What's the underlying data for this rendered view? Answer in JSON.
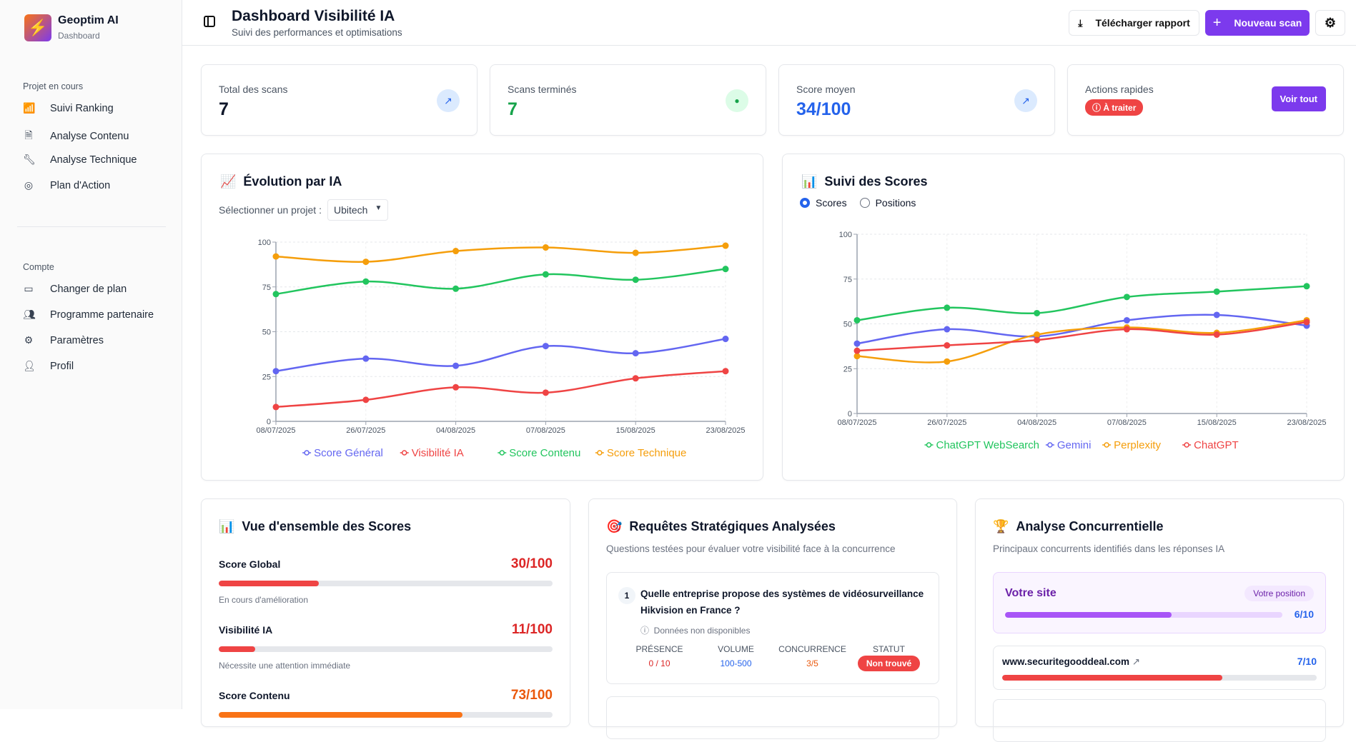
{
  "app": {
    "name": "Geoptim AI",
    "subtitle": "Dashboard",
    "logo_text": "E⚡"
  },
  "sidebar": {
    "section1": "Projet en cours",
    "items1": [
      {
        "label": "Suivi Ranking",
        "icon": "bar-chart-icon"
      },
      {
        "label": "Analyse Contenu",
        "icon": "file-text-icon"
      },
      {
        "label": "Analyse Technique",
        "icon": "wrench-icon"
      },
      {
        "label": "Plan d'Action",
        "icon": "target-icon"
      }
    ],
    "section2": "Compte",
    "items2": [
      {
        "label": "Changer de plan",
        "icon": "credit-card-icon"
      },
      {
        "label": "Programme partenaire",
        "icon": "users-icon"
      },
      {
        "label": "Paramètres",
        "icon": "gear-icon"
      },
      {
        "label": "Profil",
        "icon": "user-icon"
      }
    ]
  },
  "header": {
    "title": "Dashboard Visibilité IA",
    "subtitle": "Suivi des performances et optimisations",
    "download": "Télécharger rapport",
    "new_scan": "Nouveau scan"
  },
  "stats": [
    {
      "label": "Total des scans",
      "value": "7"
    },
    {
      "label": "Scans terminés",
      "value": "7"
    },
    {
      "label": "Score moyen",
      "value": "34/100"
    },
    {
      "label": "Actions rapides",
      "badge": "À traiter",
      "button": "Voir tout"
    }
  ],
  "evolution": {
    "title": "Évolution par IA",
    "emoji": "📈",
    "select_label": "Sélectionner un projet :",
    "select_value": "Ubitech"
  },
  "suivi": {
    "title": "Suivi des Scores",
    "emoji": "📊",
    "radio_scores": "Scores",
    "radio_positions": "Positions",
    "selected": "Scores"
  },
  "chart_data": [
    {
      "type": "line",
      "title": "Évolution par IA",
      "x": [
        "08/07/2025",
        "26/07/2025",
        "04/08/2025",
        "07/08/2025",
        "15/08/2025",
        "23/08/2025"
      ],
      "ylim": [
        0,
        100
      ],
      "yticks": [
        0,
        25,
        50,
        75,
        100
      ],
      "grid": true,
      "legend": "bottom",
      "series": [
        {
          "name": "Score Général",
          "color": "#6366f1",
          "values": [
            28,
            35,
            31,
            42,
            38,
            46
          ]
        },
        {
          "name": "Visibilité IA",
          "color": "#ef4444",
          "values": [
            8,
            12,
            19,
            16,
            24,
            28
          ]
        },
        {
          "name": "Score Contenu",
          "color": "#22c55e",
          "values": [
            71,
            78,
            74,
            82,
            79,
            85
          ]
        },
        {
          "name": "Score Technique",
          "color": "#f59e0b",
          "values": [
            92,
            89,
            95,
            97,
            94,
            98
          ]
        }
      ]
    },
    {
      "type": "line",
      "title": "Suivi des Scores",
      "x": [
        "08/07/2025",
        "26/07/2025",
        "04/08/2025",
        "07/08/2025",
        "15/08/2025",
        "23/08/2025"
      ],
      "ylim": [
        0,
        100
      ],
      "yticks": [
        0,
        25,
        50,
        75,
        100
      ],
      "grid": true,
      "legend": "bottom",
      "series": [
        {
          "name": "ChatGPT WebSearch",
          "color": "#22c55e",
          "values": [
            52,
            59,
            56,
            65,
            68,
            71
          ]
        },
        {
          "name": "Gemini",
          "color": "#6366f1",
          "values": [
            39,
            47,
            43,
            52,
            55,
            49
          ]
        },
        {
          "name": "Perplexity",
          "color": "#f59e0b",
          "values": [
            32,
            29,
            44,
            48,
            45,
            52
          ]
        },
        {
          "name": "ChatGPT",
          "color": "#ef4444",
          "values": [
            35,
            38,
            41,
            47,
            44,
            51
          ]
        }
      ]
    }
  ],
  "overview": {
    "title": "Vue d'ensemble des Scores",
    "emoji": "📊",
    "rows": [
      {
        "label": "Score Global",
        "value": "30/100",
        "pct": 30,
        "note": "En cours d'amélioration",
        "color": "#dc2626"
      },
      {
        "label": "Visibilité IA",
        "value": "11/100",
        "pct": 11,
        "note": "Nécessite une attention immédiate",
        "color": "#dc2626"
      },
      {
        "label": "Score Contenu",
        "value": "73/100",
        "pct": 73,
        "color": "#ea580c"
      }
    ]
  },
  "queries": {
    "title": "Requêtes Stratégiques Analysées",
    "emoji": "🎯",
    "subtitle": "Questions testées pour évaluer votre visibilité face à la concurrence",
    "items": [
      {
        "num": "1",
        "question": "Quelle entreprise propose des systèmes de vidéosurveillance Hikvision en France ?",
        "info": "Données non disponibles",
        "presence_label": "PRÉSENCE",
        "presence": "0 / 10",
        "volume_label": "VOLUME",
        "volume": "100-500",
        "concurrence_label": "CONCURRENCE",
        "concurrence": "3/5",
        "statut_label": "STATUT",
        "statut": "Non trouvé"
      }
    ]
  },
  "competitors": {
    "title": "Analyse Concurrentielle",
    "emoji": "🏆",
    "subtitle": "Principaux concurrents identifiés dans les réponses IA",
    "your_site": {
      "label": "Votre site",
      "badge": "Votre position",
      "score": "6/10",
      "pct": 60
    },
    "items": [
      {
        "domain": "www.securitegooddeal.com",
        "score": "7/10",
        "pct": 70
      }
    ]
  }
}
